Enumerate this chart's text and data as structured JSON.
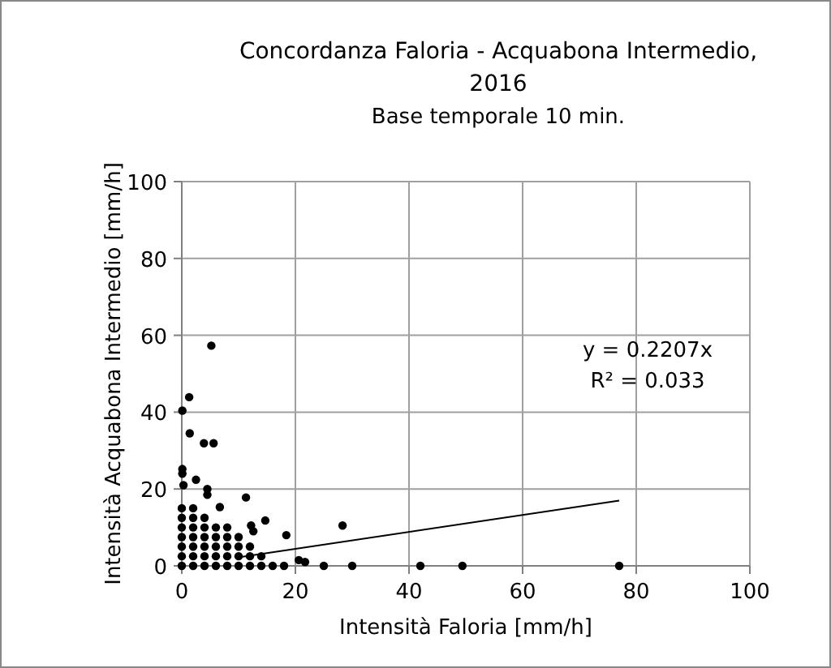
{
  "chart_data": {
    "type": "scatter",
    "title": "Concordanza Faloria - Acquabona Intermedio, 2016",
    "subtitle": "Base temporale 10 min.",
    "xlabel": "Intensità Faloria [mm/h]",
    "ylabel": "Intensità Acquabona Intermedio [mm/h]",
    "xlim": [
      0,
      100
    ],
    "ylim": [
      0,
      100
    ],
    "xticks": [
      0,
      20,
      40,
      60,
      80,
      100
    ],
    "yticks": [
      0,
      20,
      40,
      60,
      80,
      100
    ],
    "grid": true,
    "marker": "circle",
    "annotations": [
      "y = 0.2207x",
      "R² = 0.033"
    ],
    "series": [
      {
        "color": "#000000",
        "x": [
          1.3,
          0.1,
          1.4,
          3.9,
          5.6,
          5.2,
          0.1,
          0.1,
          2.5,
          0.3,
          4.5,
          4.5,
          11.3,
          6.7,
          14.7,
          28.3,
          18.4,
          12.2,
          12.6,
          20.6,
          21.7,
          25,
          30,
          42,
          49.4,
          77,
          0,
          0,
          0,
          0,
          0,
          0,
          0,
          2,
          2,
          2,
          2,
          2,
          2,
          2,
          4,
          4,
          4,
          4,
          4,
          4,
          6,
          6,
          6,
          6,
          6,
          8,
          8,
          8,
          8,
          8,
          10,
          10,
          10,
          10,
          12,
          12,
          12,
          14,
          14,
          16,
          18
        ],
        "values": [
          43.9,
          40.4,
          34.5,
          31.9,
          31.9,
          57.3,
          25.2,
          24,
          22.4,
          21,
          20,
          18.5,
          17.8,
          15.3,
          11.8,
          10.5,
          8,
          10.5,
          9,
          1.5,
          1,
          0,
          0,
          0,
          0,
          0,
          0,
          2.5,
          5,
          7.5,
          10,
          12.5,
          15,
          0,
          2.5,
          5,
          7.5,
          10,
          12.5,
          15,
          0,
          2.5,
          5,
          7.5,
          10,
          12.5,
          0,
          2.5,
          5,
          7.5,
          10,
          0,
          2.5,
          5,
          7.5,
          10,
          0,
          2.5,
          5,
          7.5,
          0,
          2.5,
          5,
          0,
          2.5,
          0,
          0
        ]
      },
      {
        "type": "line",
        "color": "#000000",
        "marker": "none",
        "x": [
          9.5,
          77
        ],
        "values": [
          2.1,
          17.0
        ]
      }
    ]
  }
}
